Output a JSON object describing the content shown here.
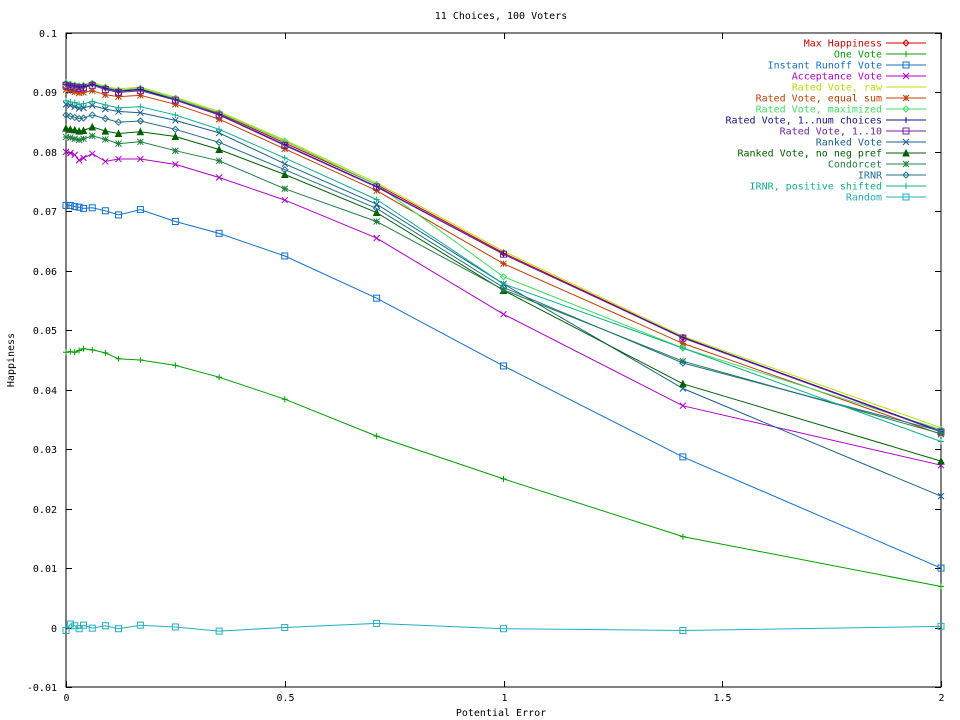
{
  "chart_data": {
    "type": "line",
    "title": "11 Choices, 100 Voters",
    "xlabel": "Potential Error",
    "ylabel": "Happiness",
    "xlim": [
      0,
      2
    ],
    "ylim": [
      -0.01,
      0.1
    ],
    "xticks": [
      0,
      0.5,
      1,
      1.5,
      2
    ],
    "xtick_labels": [
      "0",
      "0.5",
      "1",
      "1.5",
      "2"
    ],
    "yticks": [
      -0.01,
      0,
      0.01,
      0.02,
      0.03,
      0.04,
      0.05,
      0.06,
      0.07,
      0.08,
      0.09,
      0.1
    ],
    "ytick_labels": [
      "-0.01",
      "0",
      "0.01",
      "0.02",
      "0.03",
      "0.04",
      "0.05",
      "0.06",
      "0.07",
      "0.08",
      "0.09",
      "0.1"
    ],
    "grid": false,
    "legend_position": "top-right",
    "x": [
      0,
      0.01,
      0.02,
      0.03,
      0.04,
      0.06,
      0.09,
      0.12,
      0.17,
      0.25,
      0.35,
      0.5,
      0.71,
      1.0,
      1.41,
      2.0
    ],
    "series": [
      {
        "name": "Max Happiness",
        "color": "#d00000",
        "marker": "diamond",
        "values": [
          0.0915,
          0.0913,
          0.0912,
          0.091,
          0.0911,
          0.0915,
          0.0908,
          0.0903,
          0.0906,
          0.089,
          0.0865,
          0.0815,
          0.0745,
          0.063,
          0.0488,
          0.033
        ]
      },
      {
        "name": "One Vote",
        "color": "#00a000",
        "marker": "plus",
        "values": [
          0.0463,
          0.0464,
          0.0463,
          0.0466,
          0.0469,
          0.0467,
          0.0462,
          0.0452,
          0.045,
          0.0441,
          0.0421,
          0.0384,
          0.0322,
          0.025,
          0.0153,
          0.0069
        ]
      },
      {
        "name": "Instant Runoff Vote",
        "color": "#1070d0",
        "marker": "square",
        "values": [
          0.071,
          0.071,
          0.0708,
          0.0707,
          0.0705,
          0.0706,
          0.0701,
          0.0694,
          0.0703,
          0.0683,
          0.0663,
          0.0625,
          0.0554,
          0.044,
          0.0287,
          0.01
        ]
      },
      {
        "name": "Acceptance Vote",
        "color": "#b000d0",
        "marker": "x",
        "values": [
          0.08,
          0.0798,
          0.0795,
          0.0786,
          0.079,
          0.0797,
          0.0784,
          0.0788,
          0.0788,
          0.0779,
          0.0757,
          0.0719,
          0.0655,
          0.0527,
          0.0373,
          0.0273
        ]
      },
      {
        "name": "Rated Vote, raw",
        "color": "#b8e000",
        "marker": "none",
        "values": [
          0.0918,
          0.0916,
          0.0914,
          0.0912,
          0.0913,
          0.0917,
          0.091,
          0.0906,
          0.0909,
          0.0892,
          0.0868,
          0.082,
          0.0748,
          0.0633,
          0.049,
          0.0336
        ]
      },
      {
        "name": "Rated Vote, equal sum",
        "color": "#c04000",
        "marker": "star",
        "values": [
          0.0905,
          0.0903,
          0.0901,
          0.0899,
          0.09,
          0.0903,
          0.0896,
          0.0893,
          0.0895,
          0.088,
          0.0855,
          0.0805,
          0.0735,
          0.0612,
          0.0478,
          0.0325
        ]
      },
      {
        "name": "Rated Vote, maximized",
        "color": "#40e060",
        "marker": "diamond",
        "values": [
          0.0916,
          0.0914,
          0.0912,
          0.0911,
          0.0912,
          0.0915,
          0.0909,
          0.0904,
          0.0907,
          0.089,
          0.0866,
          0.0818,
          0.0745,
          0.059,
          0.047,
          0.0333
        ]
      },
      {
        "name": "Rated Vote, 1..num choices",
        "color": "#101090",
        "marker": "plus",
        "values": [
          0.0914,
          0.0912,
          0.0911,
          0.0909,
          0.091,
          0.0914,
          0.0907,
          0.0902,
          0.0905,
          0.0888,
          0.0863,
          0.0812,
          0.0742,
          0.0628,
          0.0488,
          0.033
        ]
      },
      {
        "name": "Rated Vote, 1..10",
        "color": "#7020a0",
        "marker": "square",
        "values": [
          0.0912,
          0.091,
          0.0909,
          0.0907,
          0.0908,
          0.0912,
          0.0905,
          0.09,
          0.0903,
          0.0887,
          0.0862,
          0.0811,
          0.0741,
          0.0628,
          0.0487,
          0.0329
        ]
      },
      {
        "name": "Ranked Vote",
        "color": "#1a6090",
        "marker": "x",
        "values": [
          0.088,
          0.0878,
          0.0876,
          0.0873,
          0.0874,
          0.0878,
          0.0872,
          0.0868,
          0.0866,
          0.0853,
          0.0832,
          0.078,
          0.0712,
          0.0578,
          0.0402,
          0.0221
        ]
      },
      {
        "name": "Ranked Vote, no neg pref",
        "color": "#006000",
        "marker": "triangle",
        "values": [
          0.084,
          0.0838,
          0.0837,
          0.0835,
          0.0836,
          0.0842,
          0.0835,
          0.0831,
          0.0834,
          0.0826,
          0.0804,
          0.0762,
          0.0698,
          0.0567,
          0.041,
          0.028
        ]
      },
      {
        "name": "Condorcet",
        "color": "#208040",
        "marker": "star",
        "values": [
          0.0825,
          0.0824,
          0.0822,
          0.082,
          0.0822,
          0.0827,
          0.0821,
          0.0814,
          0.0817,
          0.0802,
          0.0785,
          0.0738,
          0.0683,
          0.0568,
          0.0448,
          0.0326
        ]
      },
      {
        "name": "IRNR",
        "color": "#207090",
        "marker": "diamond",
        "values": [
          0.0862,
          0.086,
          0.0858,
          0.0856,
          0.0857,
          0.0862,
          0.0856,
          0.085,
          0.0852,
          0.0838,
          0.0816,
          0.077,
          0.0705,
          0.0572,
          0.0445,
          0.033
        ]
      },
      {
        "name": "IRNR, positive shifted",
        "color": "#10b090",
        "marker": "plus",
        "values": [
          0.0886,
          0.0884,
          0.0883,
          0.088,
          0.0881,
          0.0885,
          0.0879,
          0.0874,
          0.0876,
          0.0862,
          0.0838,
          0.079,
          0.072,
          0.0578,
          0.047,
          0.0313
        ]
      },
      {
        "name": "Random",
        "color": "#20b0c0",
        "marker": "square",
        "values": [
          -0.0005,
          0.0006,
          0.0003,
          -0.0002,
          0.0004,
          -0.0001,
          0.0003,
          -0.0002,
          0.0004,
          0.0001,
          -0.0006,
          0.0,
          0.0007,
          -0.0002,
          -0.0005,
          0.0002
        ]
      }
    ]
  }
}
